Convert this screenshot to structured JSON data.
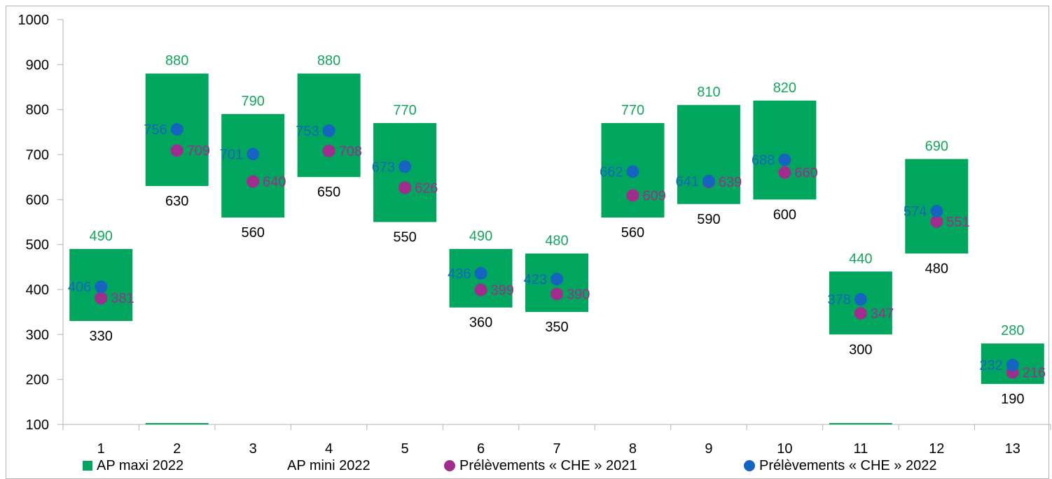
{
  "colors": {
    "ap_range": "#00a65d",
    "ap_maxi_label": "#14a65d",
    "ap_mini_label": "#000000",
    "che_2021": "#a02d8e",
    "che_2022": "#1565c0",
    "grid": "#b3b3b3"
  },
  "chart_data": {
    "type": "floating-bar-with-points",
    "title": "",
    "xlabel": "",
    "ylabel": "",
    "ylim": [
      100,
      1000
    ],
    "yticks": [
      100,
      200,
      300,
      400,
      500,
      600,
      700,
      800,
      900,
      1000
    ],
    "categories": [
      "1",
      "2",
      "3",
      "4",
      "5",
      "6",
      "7",
      "8",
      "9",
      "10",
      "11",
      "12",
      "13"
    ],
    "series": [
      {
        "name": "AP maxi 2022",
        "values": [
          490,
          880,
          790,
          880,
          770,
          490,
          480,
          770,
          810,
          820,
          440,
          690,
          280
        ]
      },
      {
        "name": "AP mini 2022",
        "values": [
          330,
          630,
          560,
          650,
          550,
          360,
          350,
          560,
          590,
          600,
          300,
          480,
          190
        ]
      },
      {
        "name": "Prélèvements « CHE » 2021",
        "values": [
          381,
          709,
          640,
          708,
          626,
          399,
          390,
          609,
          639,
          660,
          347,
          551,
          216
        ]
      },
      {
        "name": "Prélèvements « CHE » 2022",
        "values": [
          406,
          756,
          701,
          753,
          673,
          436,
          423,
          662,
          641,
          688,
          378,
          574,
          232
        ]
      }
    ],
    "grid": false,
    "legend_position": "bottom"
  },
  "legend": [
    {
      "label": "AP maxi 2022",
      "marker": "square",
      "color": "#00a65d"
    },
    {
      "label": "AP mini 2022",
      "marker": "none",
      "color": "none"
    },
    {
      "label": "Prélèvements « CHE » 2021",
      "marker": "dot",
      "color": "#a02d8e"
    },
    {
      "label": "Prélèvements « CHE » 2022",
      "marker": "dot",
      "color": "#1565c0"
    }
  ]
}
